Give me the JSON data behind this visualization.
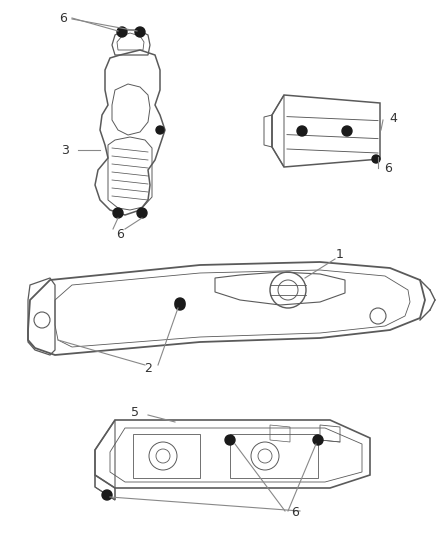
{
  "bg_color": "#ffffff",
  "line_color": "#5a5a5a",
  "bolt_color": "#1a1a1a",
  "label_color": "#333333",
  "line_color_annot": "#888888",
  "figsize": [
    4.38,
    5.33
  ],
  "dpi": 100
}
